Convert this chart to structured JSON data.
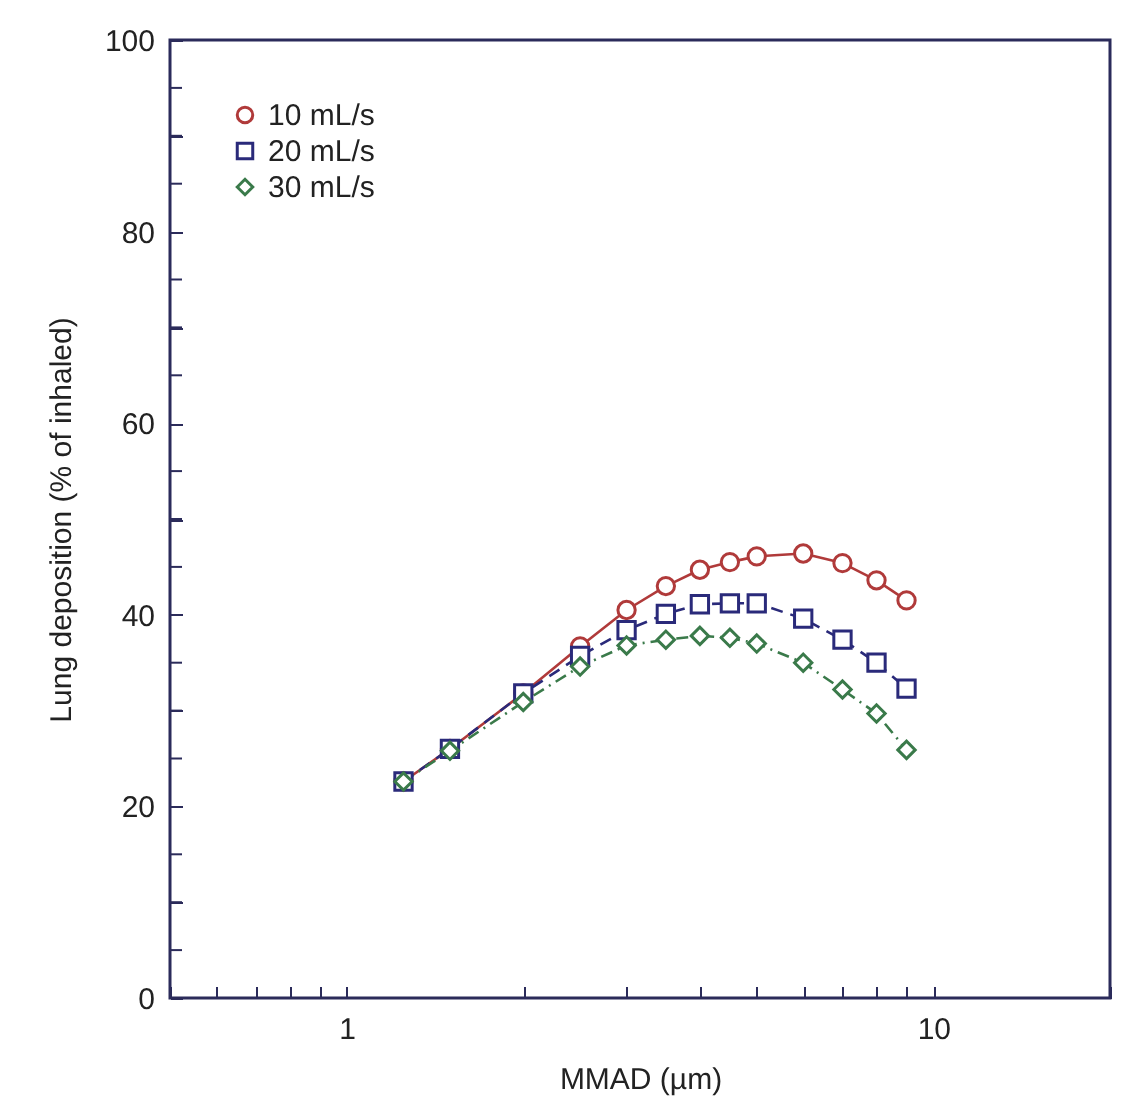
{
  "chart_data": {
    "type": "line",
    "xlabel": "MMAD (µm)",
    "ylabel": "Lung deposition (% of inhaled)",
    "x": [
      1.25,
      1.5,
      2,
      2.5,
      3,
      3.5,
      4,
      4.5,
      5,
      6,
      7,
      8,
      9
    ],
    "series": [
      {
        "name": "10 mL/s",
        "color": "#b03a3a",
        "marker": "circle",
        "line_style": "solid",
        "values": [
          22.6,
          26,
          31.8,
          36.7,
          40.5,
          43,
          44.7,
          45.5,
          46.1,
          46.4,
          45.4,
          43.6,
          41.5
        ]
      },
      {
        "name": "20 mL/s",
        "color": "#2a2a7a",
        "marker": "square",
        "line_style": "dashed",
        "values": [
          22.6,
          26,
          31.8,
          35.7,
          38.4,
          40.1,
          41.1,
          41.2,
          41.2,
          39.6,
          37.4,
          35,
          32.3
        ]
      },
      {
        "name": "30 mL/s",
        "color": "#3a7a4a",
        "marker": "diamond",
        "line_style": "dashdot",
        "values": [
          22.6,
          25.8,
          30.9,
          34.6,
          36.8,
          37.4,
          37.8,
          37.6,
          37,
          35,
          32.2,
          29.7,
          25.9
        ]
      }
    ],
    "log": "x",
    "xlim": [
      0.5,
      20
    ],
    "xticks": [
      {
        "value": 0.5,
        "label": null
      },
      {
        "value": 0.6,
        "label": null
      },
      {
        "value": 0.7,
        "label": null
      },
      {
        "value": 0.8,
        "label": null
      },
      {
        "value": 0.9,
        "label": null
      },
      1,
      {
        "value": 2,
        "label": null
      },
      {
        "value": 3,
        "label": null
      },
      {
        "value": 4,
        "label": null
      },
      {
        "value": 5,
        "label": null
      },
      {
        "value": 6,
        "label": null
      },
      {
        "value": 7,
        "label": null
      },
      {
        "value": 8,
        "label": null
      },
      {
        "value": 9,
        "label": null
      },
      10,
      {
        "value": 20,
        "label": null
      }
    ],
    "ylim": [
      0,
      100
    ],
    "yticks": [
      0,
      {
        "value": 5,
        "label": null
      },
      {
        "value": 10,
        "label": null
      },
      {
        "value": 15,
        "label": null
      },
      20,
      {
        "value": 25,
        "label": null
      },
      {
        "value": 30,
        "label": null
      },
      {
        "value": 35,
        "label": null
      },
      40,
      {
        "value": 45,
        "label": null
      },
      {
        "value": 50,
        "label": null
      },
      {
        "value": 55,
        "label": null
      },
      60,
      {
        "value": 65,
        "label": null
      },
      {
        "value": 70,
        "label": null
      },
      {
        "value": 75,
        "label": null
      },
      80,
      {
        "value": 85,
        "label": null
      },
      {
        "value": 90,
        "label": null
      },
      {
        "value": 95,
        "label": null
      },
      100
    ],
    "grid": false,
    "legend": "top left"
  }
}
